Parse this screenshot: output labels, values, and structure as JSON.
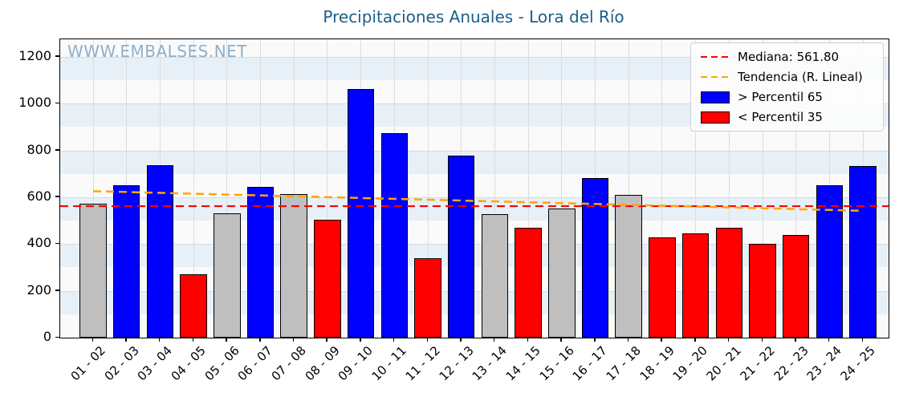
{
  "title": "Precipitaciones Anuales - Lora del Río",
  "watermark": "WWW.EMBALSES.NET",
  "legend": {
    "median_label": "Mediana: 561.80",
    "trend_label": "Tendencia (R. Lineal)",
    "above_label": "> Percentil 65",
    "below_label": "< Percentil 35"
  },
  "colors": {
    "above": "#0000ff",
    "below": "#ff0000",
    "between": "#bfbfbf",
    "median_line": "#ff0000",
    "trend_line": "#ffa500",
    "title": "#1b5e8a",
    "watermark": "#7aa3c4",
    "band_blue": "#e7f0f7",
    "plot_bg": "#fafafa"
  },
  "chart_data": {
    "type": "bar",
    "title": "Precipitaciones Anuales - Lora del Río",
    "categories": [
      "01 - 02",
      "02 - 03",
      "03 - 04",
      "04 - 05",
      "05 - 06",
      "06 - 07",
      "07 - 08",
      "08 - 09",
      "09 - 10",
      "10 - 11",
      "11 - 12",
      "12 - 13",
      "13 - 14",
      "14 - 15",
      "15 - 16",
      "16 - 17",
      "17 - 18",
      "18 - 19",
      "19 - 20",
      "20 - 21",
      "21 - 22",
      "22 - 23",
      "23 - 24",
      "24 - 25"
    ],
    "values": [
      572,
      651,
      736,
      271,
      531,
      646,
      612,
      503,
      1061,
      875,
      339,
      777,
      527,
      468,
      552,
      681,
      610,
      428,
      445,
      471,
      400,
      438,
      650,
      735
    ],
    "classes": [
      "between",
      "above",
      "above",
      "below",
      "between",
      "above",
      "between",
      "below",
      "above",
      "above",
      "below",
      "above",
      "between",
      "below",
      "between",
      "above",
      "between",
      "below",
      "below",
      "below",
      "below",
      "below",
      "above",
      "above"
    ],
    "median": 561.8,
    "trend_line": {
      "start_value": 626,
      "end_value": 542
    },
    "ylim": [
      0,
      1275
    ],
    "yticks": [
      0,
      200,
      400,
      600,
      800,
      1000,
      1200
    ],
    "grid": true,
    "legend_position": "upper right",
    "xlabel": "",
    "ylabel": ""
  }
}
